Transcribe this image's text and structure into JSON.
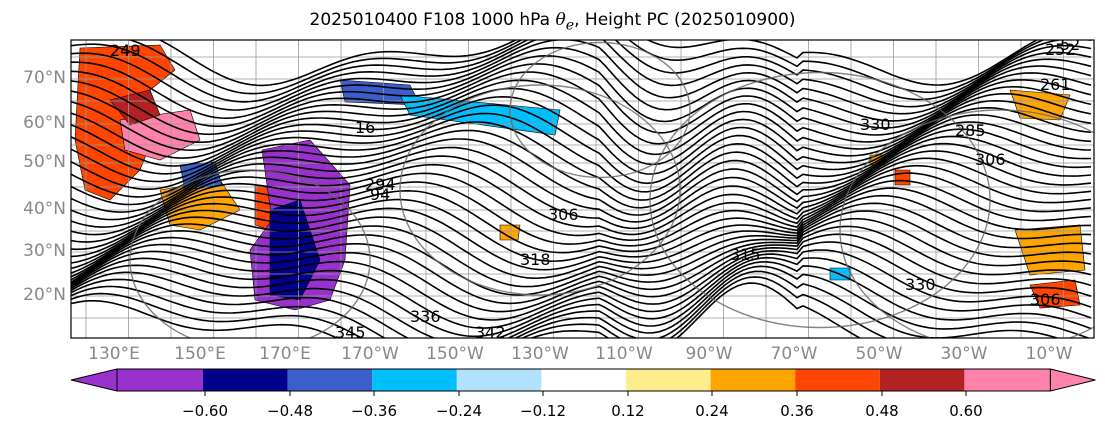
{
  "title": {
    "prefix": "2025010400 F108 1000 hPa ",
    "theta": "θ",
    "sub": "e",
    "suffix": ", Height PC (2025010900)"
  },
  "lat_labels": [
    "70°N",
    "60°N",
    "50°N",
    "40°N",
    "30°N",
    "20°N"
  ],
  "lon_labels": [
    "130°E",
    "150°E",
    "170°E",
    "170°W",
    "150°W",
    "130°W",
    "110°W",
    "90°W",
    "70°W",
    "50°W",
    "30°W",
    "10°W"
  ],
  "contour_labels": [
    "249",
    "285",
    "318",
    "306",
    "336",
    "342",
    "345",
    "330",
    "306",
    "252",
    "52",
    "16",
    "294",
    "94",
    "261",
    "315",
    "330",
    "306"
  ],
  "colorbar": {
    "tick_labels": [
      "−0.60",
      "−0.48",
      "−0.36",
      "−0.24",
      "−0.12",
      "0.12",
      "0.24",
      "0.36",
      "0.48",
      "0.60"
    ],
    "colors": [
      "#9932CC",
      "#00008B",
      "#3A5FCD",
      "#00BFFF",
      "#B0E2FF",
      "#FFFFFF",
      "#FFEC8B",
      "#FFA500",
      "#FF4500",
      "#B22222",
      "#FF82AB"
    ]
  }
}
